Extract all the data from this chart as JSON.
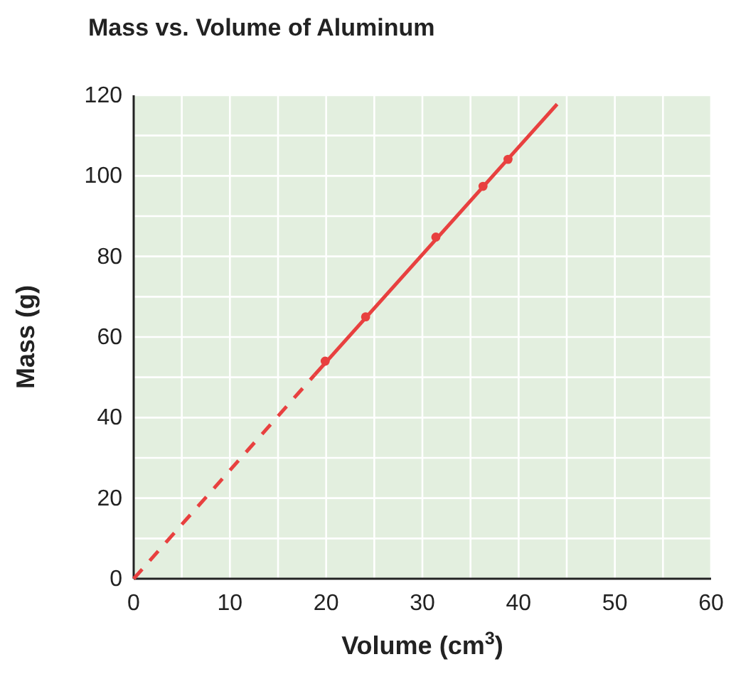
{
  "chart_data": {
    "type": "line",
    "title": "Mass vs. Volume of Aluminum",
    "xlabel": "Volume (cm$^{3}$)",
    "ylabel": "Mass (g)",
    "xlim": [
      0,
      60
    ],
    "ylim": [
      0,
      120
    ],
    "xticks": [
      0,
      {
        "value": 5,
        "label": null
      },
      10,
      {
        "value": 15,
        "label": null
      },
      20,
      {
        "value": 25,
        "label": null
      },
      30,
      {
        "value": 35,
        "label": null
      },
      40,
      {
        "value": 45,
        "label": null
      },
      50,
      {
        "value": 55,
        "label": null
      },
      60
    ],
    "yticks": [
      0,
      {
        "value": 10,
        "label": null
      },
      20,
      {
        "value": 30,
        "label": null
      },
      40,
      {
        "value": 50,
        "label": null
      },
      60,
      {
        "value": 70,
        "label": null
      },
      80,
      {
        "value": 90,
        "label": null
      },
      100,
      {
        "value": 110,
        "label": null
      },
      120
    ],
    "grid": true,
    "series": [
      {
        "color": "#e8403f",
        "line_style": "dashed",
        "marker": "none",
        "x": [
          0,
          18.8
        ],
        "values": [
          0,
          50.6
        ]
      },
      {
        "color": "#e8403f",
        "line_style": "solid",
        "marker": "none",
        "x": [
          18.8,
          44
        ],
        "values": [
          50.6,
          117.8
        ]
      },
      {
        "type": "scatter",
        "color": "#e8403f",
        "marker": "circle",
        "x": [
          19.9,
          24.1,
          31.4,
          36.3,
          38.9
        ],
        "values": [
          54,
          65,
          84.8,
          97.4,
          104.1
        ]
      }
    ]
  }
}
